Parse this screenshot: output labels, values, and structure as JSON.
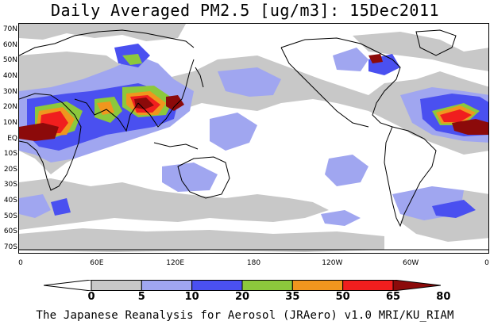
{
  "title": "Daily Averaged PM2.5 [ug/m3]: 15Dec2011",
  "credit": "The Japanese Reanalysis for Aerosol (JRAero) v1.0 MRI/KU_RIAM",
  "lat_labels": [
    "70N",
    "60N",
    "50N",
    "40N",
    "30N",
    "20N",
    "10N",
    "EQ",
    "10S",
    "20S",
    "30S",
    "40S",
    "50S",
    "60S",
    "70S"
  ],
  "lon_labels": [
    "0",
    "60E",
    "120E",
    "180",
    "120W",
    "60W",
    "0"
  ],
  "colorbar": {
    "labels": [
      "0",
      "5",
      "10",
      "20",
      "35",
      "50",
      "65",
      "80"
    ],
    "colors": [
      "#ffffff",
      "#c8c8c8",
      "#a0a6f0",
      "#4a50f0",
      "#8cc83c",
      "#f0961e",
      "#f01e1e",
      "#8c0a0a"
    ]
  },
  "map_colors": {
    "gray": "#c8c8c8",
    "lightblue": "#a0a6f0",
    "blue": "#4a50f0",
    "green": "#8cc83c",
    "orange": "#f0961e",
    "red": "#f01e1e",
    "darkred": "#8c0a0a",
    "coast": "#000000"
  }
}
